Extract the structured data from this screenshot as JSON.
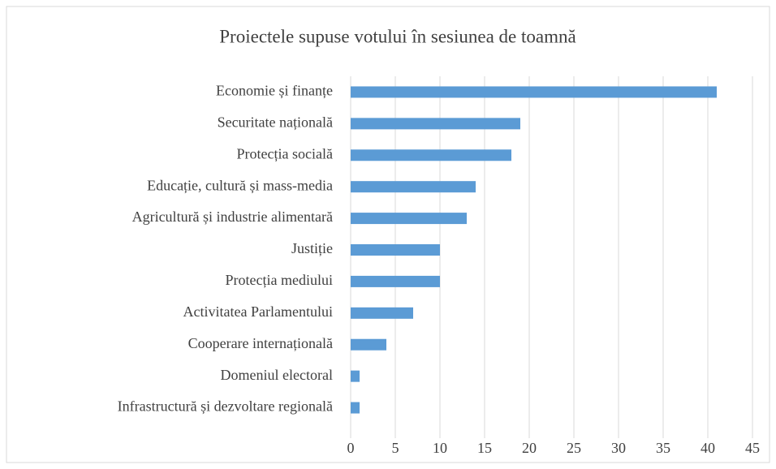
{
  "chart_data": {
    "type": "bar",
    "orientation": "horizontal",
    "title": "Proiectele supuse votului în sesiunea de toamnă",
    "categories": [
      "Economie și finanțe",
      "Securitate națională",
      "Protecția socială",
      "Educație, cultură și mass-media",
      "Agricultură și industrie alimentară",
      "Justiție",
      "Protecția mediului",
      "Activitatea Parlamentului",
      "Cooperare internațională",
      "Domeniul electoral",
      "Infrastructură și dezvoltare regională"
    ],
    "values": [
      41,
      19,
      18,
      14,
      13,
      10,
      10,
      7,
      4,
      1,
      1
    ],
    "color": "#5b9bd5",
    "xlim": [
      0,
      45
    ],
    "xticks": [
      0,
      5,
      10,
      15,
      20,
      25,
      30,
      35,
      40,
      45
    ],
    "grid": true
  }
}
